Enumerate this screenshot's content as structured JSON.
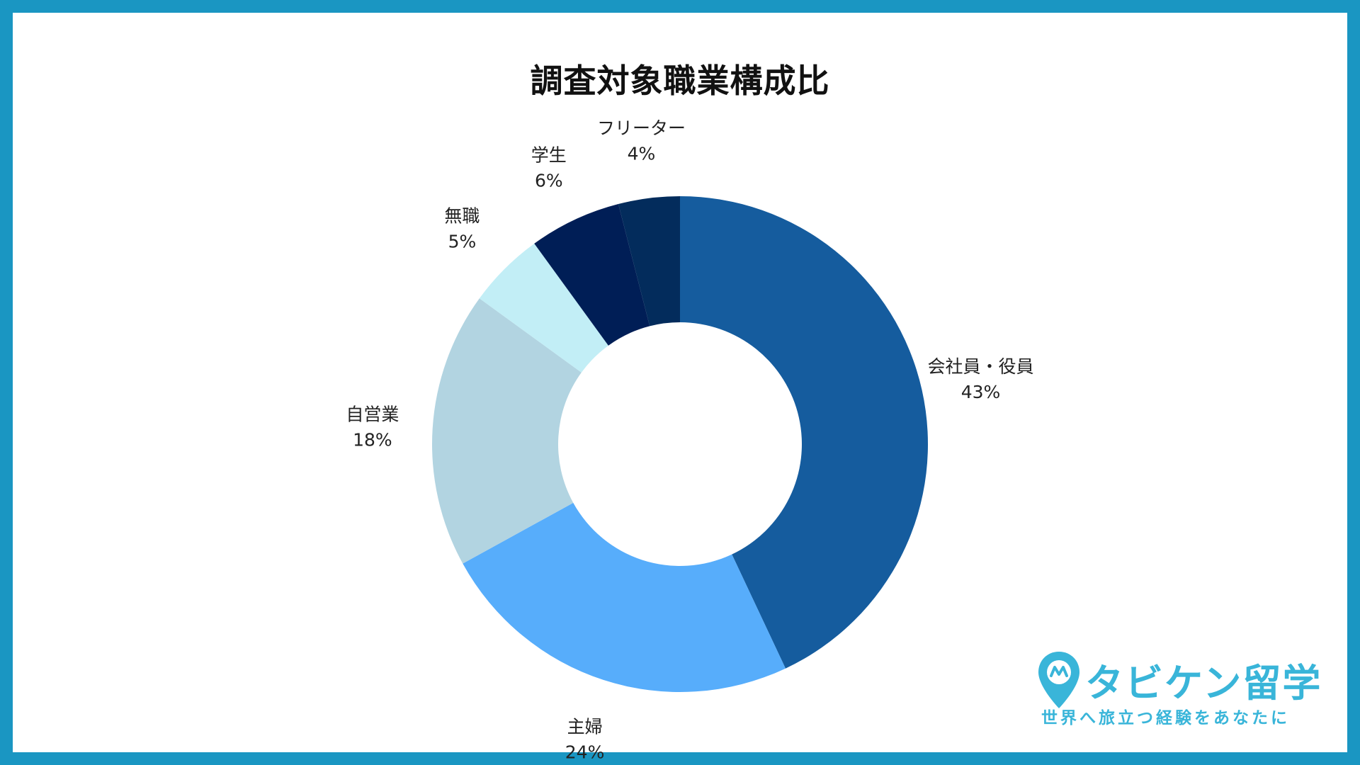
{
  "title": "調査対象職業構成比",
  "chart_data": {
    "type": "pie",
    "donut": true,
    "title": "調査対象職業構成比",
    "slices": [
      {
        "label": "会社員・役員",
        "value": 43,
        "value_label": "43%",
        "color": "#155c9e"
      },
      {
        "label": "主婦",
        "value": 24,
        "value_label": "24%",
        "color": "#57adfb"
      },
      {
        "label": "自営業",
        "value": 18,
        "value_label": "18%",
        "color": "#b2d4e1"
      },
      {
        "label": "無職",
        "value": 5,
        "value_label": "5%",
        "color": "#c2eef6"
      },
      {
        "label": "学生",
        "value": 6,
        "value_label": "6%",
        "color": "#001e56"
      },
      {
        "label": "フリーター",
        "value": 4,
        "value_label": "4%",
        "color": "#032c5c"
      }
    ]
  },
  "logo": {
    "name": "タビケン留学",
    "tagline": "世界へ旅立つ経験をあなたに",
    "color": "#39b5d9",
    "icon": "map-pin-logo-icon"
  },
  "frame_color": "#1a96c2"
}
